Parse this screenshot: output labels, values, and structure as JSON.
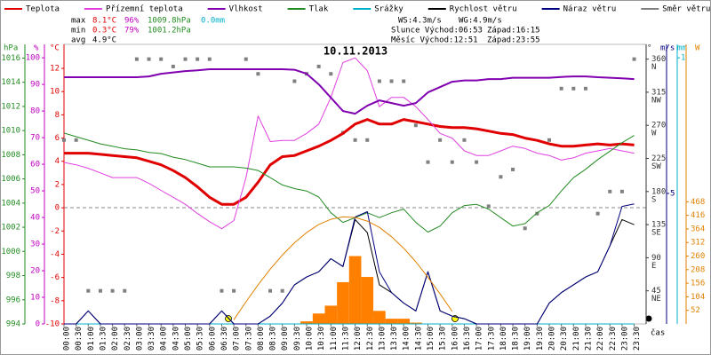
{
  "chart_data": {
    "type": "line",
    "title": "10.11.2013",
    "x_label": "čas",
    "categories": [
      "00:00",
      "00:30",
      "01:00",
      "01:30",
      "02:00",
      "02:30",
      "03:00",
      "03:30",
      "04:00",
      "04:30",
      "05:00",
      "05:30",
      "06:00",
      "06:30",
      "07:00",
      "07:30",
      "08:00",
      "08:30",
      "09:00",
      "09:30",
      "10:00",
      "10:30",
      "11:00",
      "11:30",
      "12:00",
      "12:30",
      "13:00",
      "13:30",
      "14:00",
      "14:30",
      "15:00",
      "15:30",
      "16:00",
      "16:30",
      "17:00",
      "17:30",
      "18:00",
      "18:30",
      "19:00",
      "19:30",
      "20:00",
      "20:30",
      "21:00",
      "21:30",
      "22:00",
      "22:30",
      "23:00",
      "23:30"
    ],
    "axes": {
      "pressure": {
        "label": "hPa",
        "color": "#228b22",
        "ylim": [
          994,
          1016.4
        ],
        "yticks": [
          994,
          996,
          998,
          1000,
          1002,
          1004,
          1006,
          1008,
          1010,
          1012,
          1014,
          1016
        ]
      },
      "humidity": {
        "label": "%",
        "color": "#c000c0",
        "ylim": [
          0,
          101.7
        ],
        "yticks": [
          0,
          10,
          20,
          30,
          40,
          50,
          60,
          70,
          80,
          90,
          100
        ]
      },
      "temperature": {
        "label": "°C",
        "color": "#e00000",
        "ylim": [
          -10,
          13.3
        ],
        "yticks": [
          -10,
          -8,
          -6,
          -4,
          -2,
          0,
          2,
          4,
          6,
          8,
          10,
          12
        ]
      },
      "direction": {
        "label": "°",
        "color": "#333333",
        "ylim": [
          0,
          368
        ],
        "yticks": [
          {
            "value": 45,
            "label": "45",
            "compass": "NE"
          },
          {
            "value": 90,
            "label": "90",
            "compass": "E"
          },
          {
            "value": 135,
            "label": "135",
            "compass": "SE"
          },
          {
            "value": 180,
            "label": "180",
            "compass": "S"
          },
          {
            "value": 225,
            "label": "225",
            "compass": "SW"
          },
          {
            "value": 270,
            "label": "270",
            "compass": "W"
          },
          {
            "value": 315,
            "label": "315",
            "compass": "NW"
          },
          {
            "value": 360,
            "label": "360",
            "compass": "N"
          }
        ]
      },
      "wind": {
        "label": "m/s",
        "color": "#000080",
        "ylim": [
          0,
          10.37
        ],
        "yticks": [
          5
        ]
      },
      "precip": {
        "label": "mm",
        "color": "#00b0c8",
        "ylim": [
          0,
          1.017
        ],
        "yticks": [
          1
        ]
      },
      "radiation": {
        "label": "W",
        "color": "#e08000",
        "ylim": [
          0,
          1037
        ],
        "yticks": [
          52,
          104,
          156,
          208,
          260,
          312,
          364,
          416,
          468
        ]
      }
    },
    "series": [
      {
        "name": "Teplota",
        "color": "#e00000",
        "axis": "temperature",
        "kind": "line",
        "width": 3,
        "values": [
          4.7,
          4.7,
          4.7,
          4.6,
          4.5,
          4.4,
          4.3,
          4.0,
          3.7,
          3.2,
          2.6,
          1.8,
          0.9,
          0.3,
          0.3,
          0.9,
          2.2,
          3.7,
          4.4,
          4.5,
          4.9,
          5.3,
          5.8,
          6.4,
          7.2,
          7.6,
          7.2,
          7.2,
          7.6,
          7.4,
          7.2,
          7.0,
          6.9,
          6.9,
          6.8,
          6.6,
          6.4,
          6.3,
          6.0,
          5.8,
          5.5,
          5.3,
          5.3,
          5.4,
          5.5,
          5.4,
          5.5,
          5.4
        ]
      },
      {
        "name": "Přízemní teplota",
        "color": "#e040e0",
        "axis": "temperature",
        "kind": "line",
        "width": 1,
        "values": [
          3.9,
          3.7,
          3.4,
          3.0,
          2.6,
          2.6,
          2.6,
          2.1,
          1.5,
          0.9,
          0.3,
          -0.5,
          -1.2,
          -1.8,
          -1.1,
          2.6,
          7.9,
          5.7,
          5.8,
          5.8,
          6.4,
          7.2,
          9.5,
          12.5,
          12.9,
          11.8,
          8.7,
          9.5,
          9.5,
          8.7,
          7.6,
          6.4,
          6.0,
          4.9,
          4.5,
          4.5,
          4.9,
          5.3,
          5.1,
          4.7,
          4.5,
          4.1,
          4.3,
          4.7,
          4.9,
          5.1,
          4.9,
          4.7
        ]
      },
      {
        "name": "Vlhkost",
        "color": "#8000b0",
        "axis": "humidity",
        "kind": "line",
        "width": 2,
        "values": [
          92.7,
          92.7,
          92.7,
          92.7,
          92.7,
          92.7,
          92.7,
          93,
          94,
          94.5,
          95,
          95.3,
          95.7,
          95.7,
          95.7,
          95.7,
          95.7,
          95.7,
          95.7,
          95.5,
          94,
          90,
          85,
          80,
          79,
          82,
          84,
          83,
          82,
          83,
          87,
          89,
          91,
          91.5,
          91.5,
          92,
          92,
          92.5,
          92.5,
          92.5,
          92.5,
          92.8,
          93,
          93,
          92.7,
          92.5,
          92.3,
          92
        ]
      },
      {
        "name": "Tlak",
        "color": "#228b22",
        "axis": "pressure",
        "kind": "line",
        "width": 1,
        "values": [
          1009.8,
          1009.5,
          1009.2,
          1008.9,
          1008.7,
          1008.5,
          1008.4,
          1008.2,
          1008.1,
          1007.8,
          1007.6,
          1007.3,
          1007.0,
          1007.0,
          1007.0,
          1006.9,
          1006.7,
          1006.1,
          1005.5,
          1005.2,
          1005.0,
          1004.5,
          1003.2,
          1002.4,
          1002.8,
          1003.2,
          1002.8,
          1003.2,
          1003.5,
          1002.4,
          1001.6,
          1002.1,
          1003.2,
          1003.8,
          1003.9,
          1003.5,
          1002.8,
          1002.1,
          1002.3,
          1003.2,
          1003.8,
          1005.0,
          1006.1,
          1006.8,
          1007.6,
          1008.3,
          1009.0,
          1009.6
        ]
      },
      {
        "name": "Srážky",
        "color": "#00b0c8",
        "axis": "precip",
        "kind": "line",
        "width": 1,
        "values": [
          0,
          0,
          0,
          0,
          0,
          0,
          0,
          0,
          0,
          0,
          0,
          0,
          0,
          0,
          0,
          0,
          0,
          0,
          0,
          0,
          0,
          0,
          0,
          0,
          0,
          0,
          0,
          0,
          0,
          0,
          0,
          0,
          0,
          0,
          0,
          0,
          0,
          0,
          0,
          0,
          0,
          0,
          0,
          0,
          0,
          0,
          0,
          0
        ]
      },
      {
        "name": "Rychlost větru",
        "color": "#000000",
        "axis": "wind",
        "kind": "line",
        "width": 1,
        "values": [
          0,
          0,
          0.5,
          0,
          0,
          0,
          0,
          0,
          0,
          0,
          0,
          0,
          0,
          0.5,
          0,
          0,
          0,
          0.3,
          0.8,
          1.5,
          1.8,
          2.0,
          2.5,
          2.2,
          4.0,
          3.5,
          1.5,
          1.2,
          0.8,
          0.5,
          2.0,
          0.5,
          0.3,
          0.2,
          0,
          0,
          0,
          0,
          0,
          0,
          0.8,
          1.2,
          1.5,
          1.8,
          2.0,
          3.0,
          4.0,
          3.8
        ]
      },
      {
        "name": "Náraz větru",
        "color": "#000080",
        "axis": "wind",
        "kind": "line",
        "width": 1,
        "values": [
          0,
          0,
          0.5,
          0,
          0,
          0,
          0,
          0,
          0,
          0,
          0,
          0,
          0,
          0.5,
          0,
          0,
          0,
          0.3,
          0.8,
          1.5,
          1.8,
          2.0,
          2.5,
          2.2,
          4.1,
          4.3,
          2.0,
          1.2,
          0.8,
          0.5,
          2.0,
          0.5,
          0.3,
          0.2,
          0,
          0,
          0,
          0,
          0,
          0,
          0.8,
          1.2,
          1.5,
          1.8,
          2.0,
          3.0,
          4.5,
          4.6
        ]
      },
      {
        "name": "Směr větru",
        "color": "#808080",
        "axis": "direction",
        "kind": "dots",
        "width": 0,
        "values": [
          250,
          250,
          45,
          45,
          45,
          45,
          360,
          360,
          360,
          350,
          360,
          360,
          360,
          45,
          45,
          360,
          340,
          45,
          45,
          330,
          340,
          350,
          340,
          260,
          250,
          250,
          330,
          330,
          330,
          270,
          220,
          250,
          220,
          250,
          220,
          160,
          200,
          210,
          130,
          150,
          250,
          320,
          320,
          320,
          150,
          180,
          180,
          360
        ]
      },
      {
        "color": "#ff8000",
        "axis": "radiation",
        "kind": "area",
        "width": 0,
        "values": [
          0,
          0,
          0,
          0,
          0,
          0,
          0,
          0,
          0,
          0,
          0,
          0,
          0,
          0,
          0,
          0,
          0,
          0,
          0,
          0,
          10,
          40,
          70,
          160,
          260,
          180,
          50,
          20,
          20,
          5,
          0,
          0,
          0,
          0,
          0,
          0,
          0,
          0,
          0,
          0,
          0,
          0,
          0,
          0,
          0,
          0,
          0,
          0
        ]
      },
      {
        "color": "#e08000",
        "axis": "radiation",
        "kind": "line",
        "width": 1,
        "values": [
          null,
          null,
          null,
          null,
          null,
          null,
          null,
          null,
          null,
          null,
          null,
          null,
          null,
          null,
          16,
          85,
          150,
          210,
          264,
          311,
          350,
          381,
          401,
          410,
          408,
          394,
          370,
          334,
          290,
          238,
          179,
          115,
          48,
          null,
          null,
          null,
          null,
          null,
          null,
          null,
          null,
          null,
          null,
          null,
          null,
          null,
          null,
          null
        ]
      }
    ],
    "stats": {
      "rows": [
        {
          "label": "max",
          "temperature": "8.1°C",
          "humidity": "96%",
          "pressure": "1009.8hPa",
          "precip": "0.0mm"
        },
        {
          "label": "min",
          "temperature": "0.3°C",
          "humidity": "79%",
          "pressure": "1001.2hPa"
        },
        {
          "label": "avg",
          "temperature": "4.9°C"
        }
      ],
      "ws": "WS:4.3m/s",
      "wg": "WG:4.9m/s",
      "sun_rise": "Slunce Východ:06:53",
      "sun_set": "Západ:16:15",
      "moon_rise": "Měsíc  Východ:12:51",
      "moon_set": "Západ:23:55"
    }
  }
}
